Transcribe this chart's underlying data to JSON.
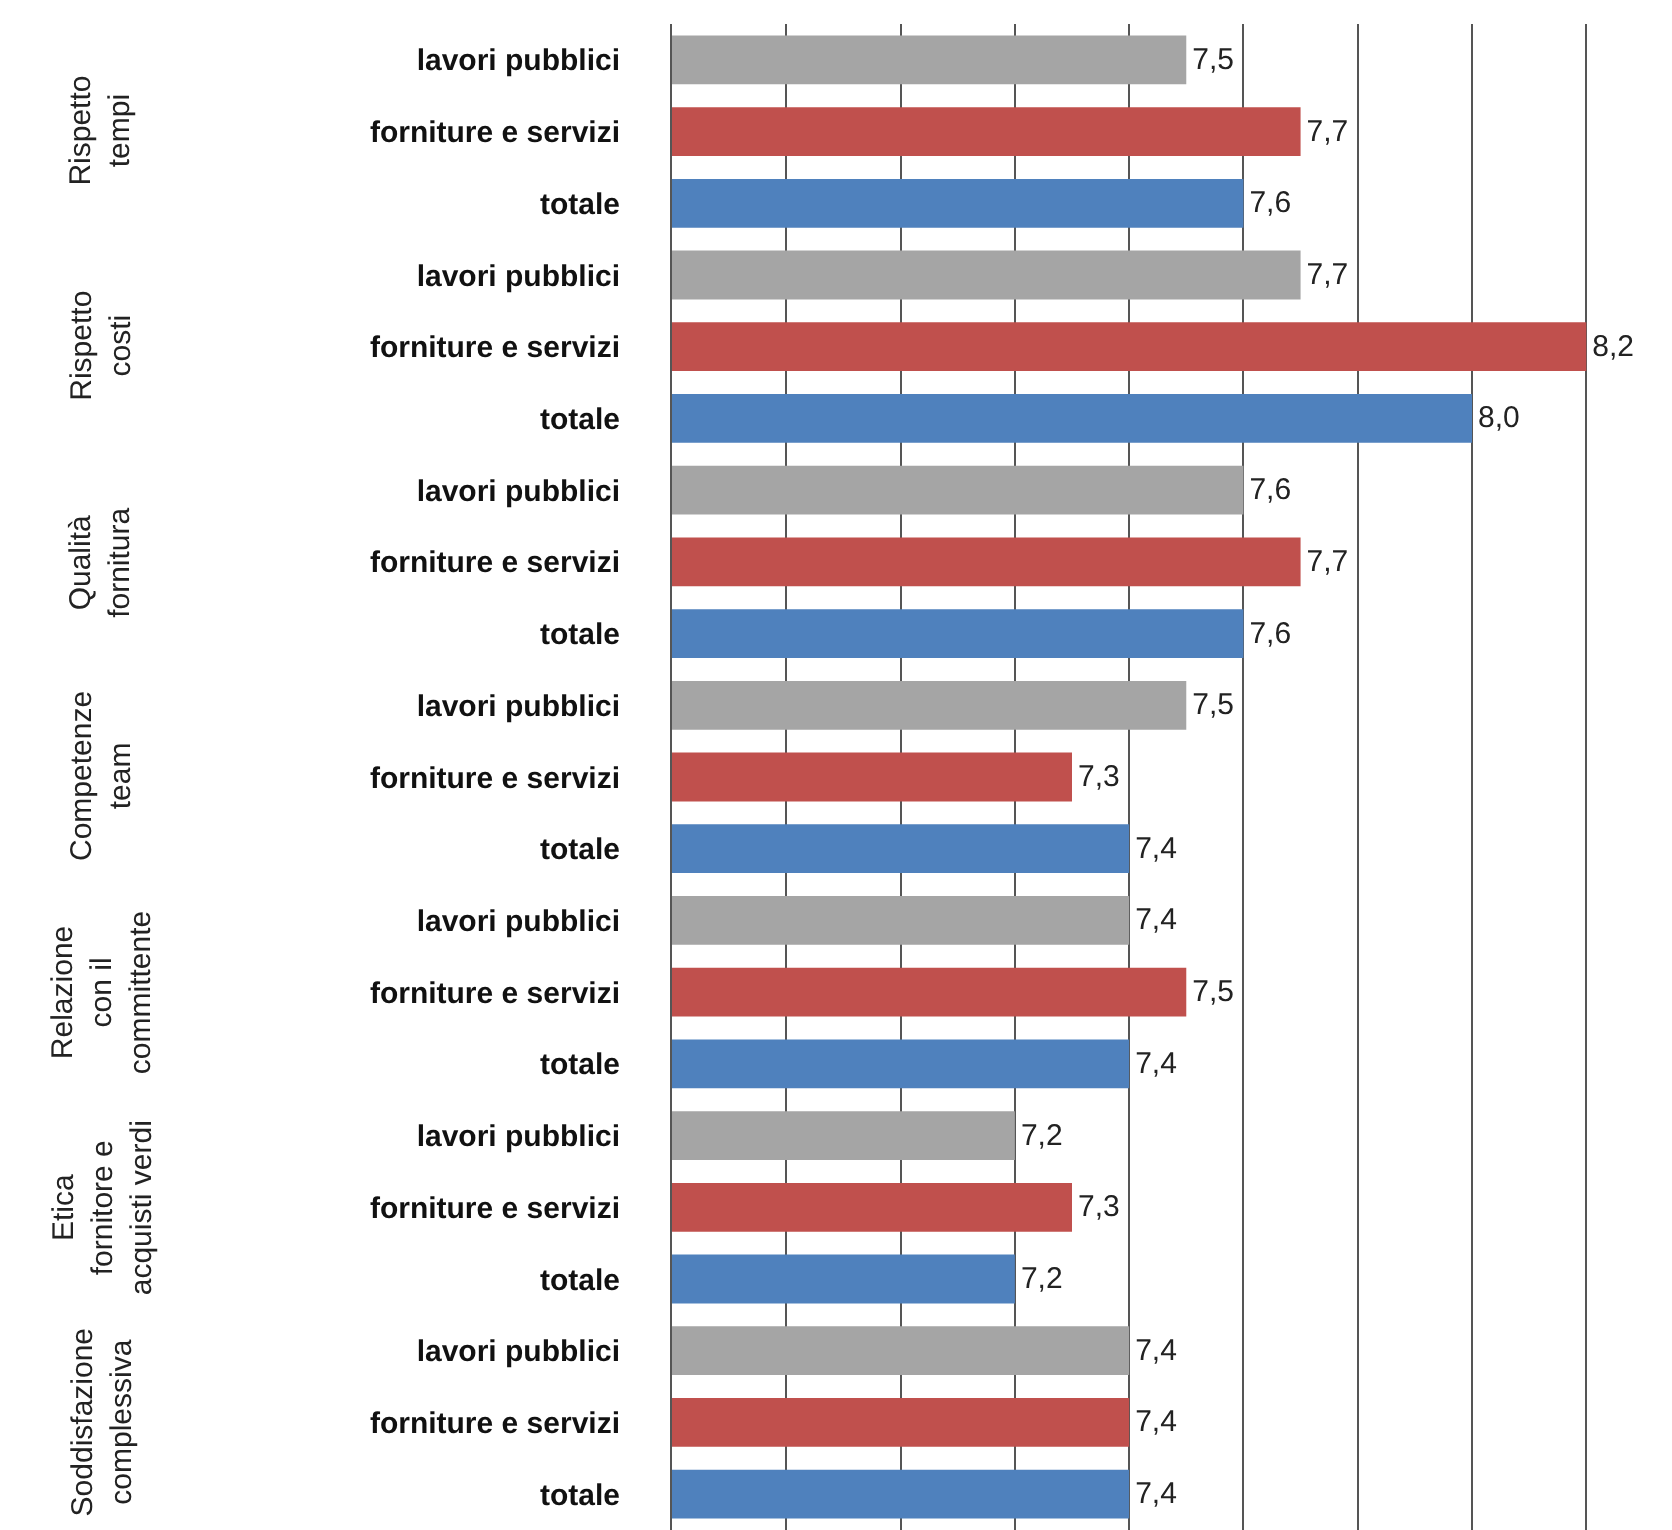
{
  "chart_data": {
    "type": "bar",
    "orientation": "horizontal",
    "categories": [
      "lavori pubblici",
      "forniture e servizi",
      "totale",
      "lavori pubblici",
      "forniture e servizi",
      "totale",
      "lavori pubblici",
      "forniture e servizi",
      "totale",
      "lavori pubblici",
      "forniture e servizi",
      "totale",
      "lavori pubblici",
      "forniture e servizi",
      "totale",
      "lavori pubblici",
      "forniture e servizi",
      "totale",
      "lavori pubblici",
      "forniture e servizi",
      "totale"
    ],
    "values": [
      7.5,
      7.7,
      7.6,
      7.7,
      8.2,
      8.0,
      7.6,
      7.7,
      7.6,
      7.5,
      7.3,
      7.4,
      7.4,
      7.5,
      7.4,
      7.2,
      7.3,
      7.2,
      7.4,
      7.4,
      7.4
    ],
    "value_labels": [
      "7,5",
      "7,7",
      "7,6",
      "7,7",
      "8,2",
      "8,0",
      "7,6",
      "7,7",
      "7,6",
      "7,5",
      "7,3",
      "7,4",
      "7,4",
      "7,5",
      "7,4",
      "7,2",
      "7,3",
      "7,2",
      "7,4",
      "7,4",
      "7,4"
    ],
    "colors": [
      "#a5a5a5",
      "#c0504d",
      "#4f81bd",
      "#a5a5a5",
      "#c0504d",
      "#4f81bd",
      "#a5a5a5",
      "#c0504d",
      "#4f81bd",
      "#a5a5a5",
      "#c0504d",
      "#4f81bd",
      "#a5a5a5",
      "#c0504d",
      "#4f81bd",
      "#a5a5a5",
      "#c0504d",
      "#4f81bd",
      "#a5a5a5",
      "#c0504d",
      "#4f81bd"
    ],
    "annotations": [
      "Rispetto\ntempi",
      "Rispetto\ncosti",
      "Qualità\nfornitura",
      "Competenze\nteam",
      "Relazione\ncon il\ncommittente",
      "Etica\nfornitore e\nacquisti verdi",
      "Soddisfazione\ncomplessiva"
    ],
    "xlim": [
      6.6,
      8.35
    ],
    "xticks": [
      {
        "value": 6.6,
        "label": null
      },
      {
        "value": 6.8,
        "label": null
      },
      {
        "value": 7.0,
        "label": null
      },
      {
        "value": 7.2,
        "label": null
      },
      {
        "value": 7.4,
        "label": null
      },
      {
        "value": 7.6,
        "label": null
      },
      {
        "value": 7.8,
        "label": null
      },
      {
        "value": 8.0,
        "label": null
      },
      {
        "value": 8.2,
        "label": null
      }
    ],
    "grid": "x",
    "tick_labels": "y"
  }
}
